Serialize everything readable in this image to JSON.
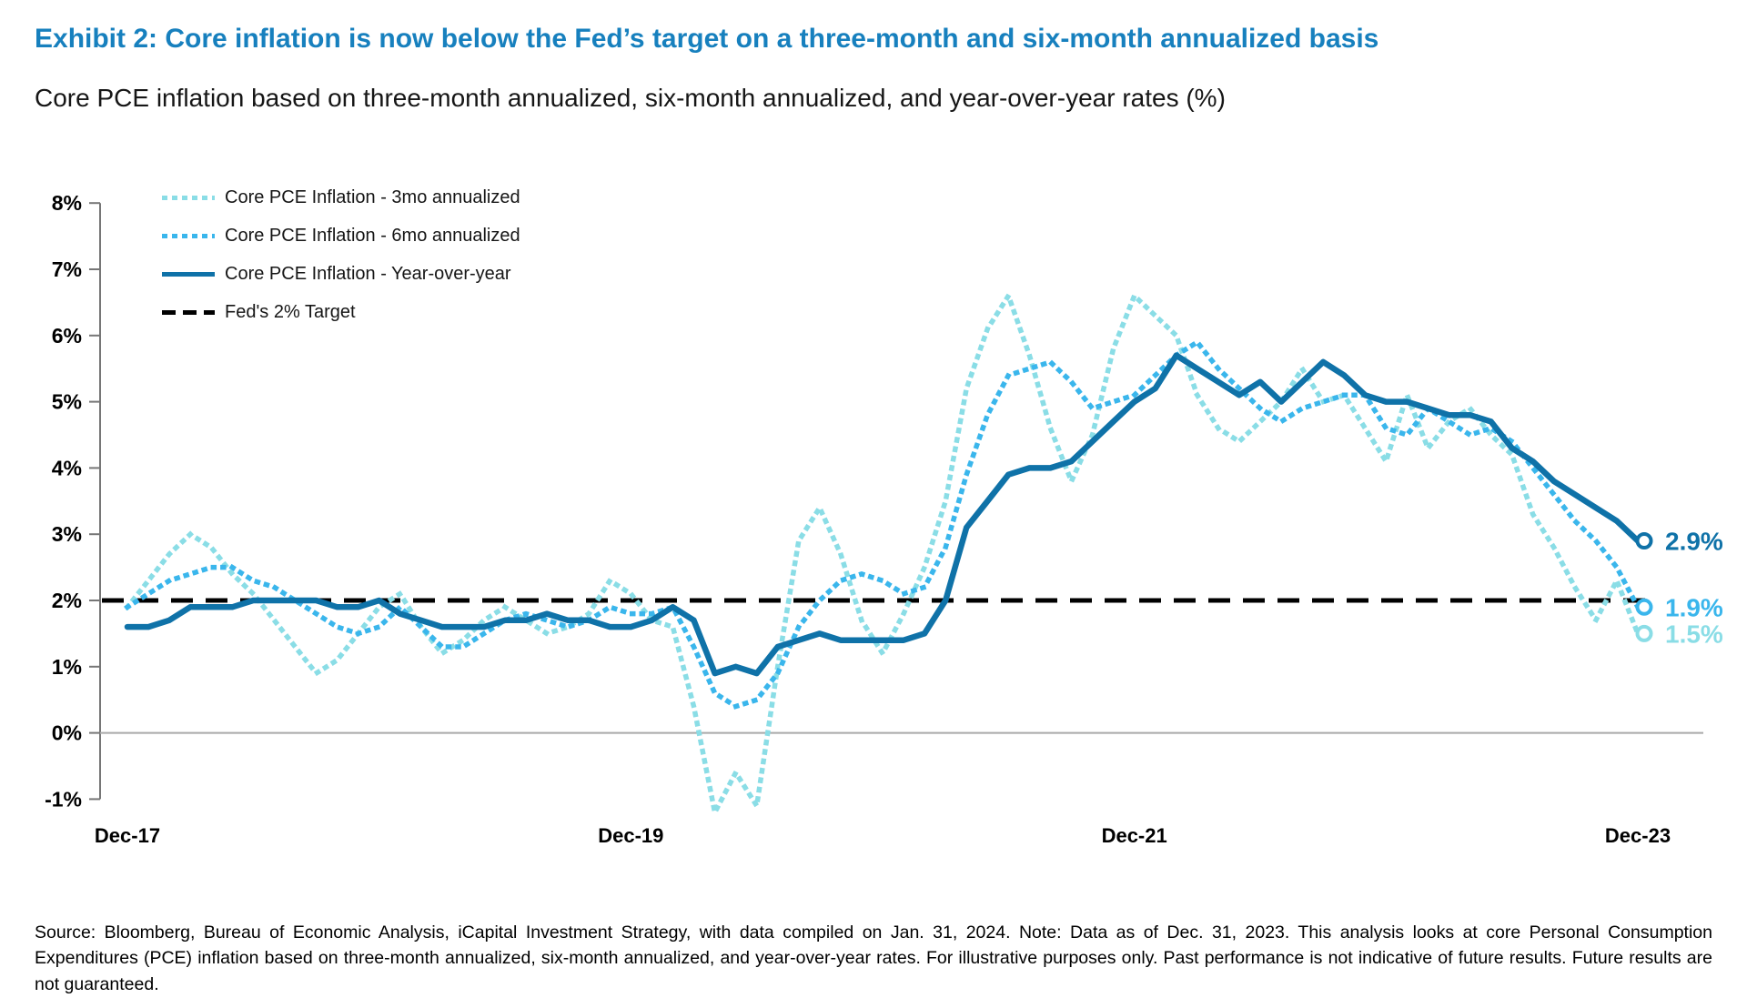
{
  "header": {
    "title": "Exhibit 2: Core inflation is now below the Fed’s target on a three-month and six-month annualized basis",
    "subtitle": "Core PCE inflation based on three-month annualized, six-month annualized, and year-over-year rates (%)"
  },
  "colors": {
    "title_blue": "#1780BE",
    "yoy_line": "#0F72A8",
    "mo6_line": "#3AB6EC",
    "mo3_line": "#8ADDE6",
    "target_line": "#000000",
    "zero_line": "#A9A9A9",
    "axis": "#767676",
    "tick_text": "#000000"
  },
  "chart_data": {
    "type": "line",
    "title": "Core PCE inflation based on three-month annualized, six-month annualized, and year-over-year rates (%)",
    "xlabel": "",
    "ylabel": "",
    "x_unit": "months from Dec-2017 to Dec-2023",
    "ylim": [
      -1,
      8
    ],
    "grid": "zero-line-only",
    "legend_position": "top-left-inside",
    "y_ticks": [
      "8%",
      "7%",
      "6%",
      "5%",
      "4%",
      "3%",
      "2%",
      "1%",
      "0%",
      "-1%"
    ],
    "x_ticks": [
      {
        "label": "Dec-17",
        "month": 0
      },
      {
        "label": "Dec-19",
        "month": 24
      },
      {
        "label": "Dec-21",
        "month": 48
      },
      {
        "label": "Dec-23",
        "month": 72
      }
    ],
    "target_line": {
      "label": "Fed's 2% Target",
      "value": 2
    },
    "series": [
      {
        "name": "Core PCE Inflation - 3mo annualized",
        "style": "dotted",
        "color_key": "mo3_line",
        "end_label": "1.5%",
        "values": [
          1.9,
          2.3,
          2.7,
          3.0,
          2.8,
          2.4,
          2.1,
          1.7,
          1.3,
          0.9,
          1.1,
          1.5,
          1.9,
          2.1,
          1.6,
          1.2,
          1.4,
          1.7,
          1.9,
          1.7,
          1.5,
          1.6,
          1.8,
          2.3,
          2.1,
          1.7,
          1.6,
          0.4,
          -1.2,
          -0.6,
          -1.1,
          1.0,
          2.9,
          3.4,
          2.7,
          1.7,
          1.2,
          1.8,
          2.5,
          3.5,
          5.2,
          6.1,
          6.6,
          5.7,
          4.6,
          3.8,
          4.5,
          5.8,
          6.6,
          6.3,
          6.0,
          5.1,
          4.6,
          4.4,
          4.7,
          5.0,
          5.5,
          5.0,
          5.1,
          4.6,
          4.1,
          5.1,
          4.3,
          4.7,
          4.9,
          4.5,
          4.2,
          3.3,
          2.8,
          2.2,
          1.7,
          2.3,
          1.5
        ]
      },
      {
        "name": "Core PCE Inflation - 6mo annualized",
        "style": "dotted",
        "color_key": "mo6_line",
        "end_label": "1.9%",
        "values": [
          1.9,
          2.1,
          2.3,
          2.4,
          2.5,
          2.5,
          2.3,
          2.2,
          2.0,
          1.8,
          1.6,
          1.5,
          1.6,
          1.9,
          1.6,
          1.3,
          1.3,
          1.5,
          1.7,
          1.8,
          1.7,
          1.6,
          1.7,
          1.9,
          1.8,
          1.8,
          1.9,
          1.3,
          0.6,
          0.4,
          0.5,
          0.9,
          1.6,
          2.0,
          2.3,
          2.4,
          2.3,
          2.1,
          2.2,
          2.8,
          3.9,
          4.8,
          5.4,
          5.5,
          5.6,
          5.3,
          4.9,
          5.0,
          5.1,
          5.4,
          5.7,
          5.9,
          5.5,
          5.2,
          4.9,
          4.7,
          4.9,
          5.0,
          5.1,
          5.1,
          4.6,
          4.5,
          4.9,
          4.7,
          4.5,
          4.6,
          4.4,
          4.0,
          3.6,
          3.2,
          2.9,
          2.5,
          1.9
        ]
      },
      {
        "name": "Core PCE Inflation - Year-over-year",
        "style": "solid",
        "color_key": "yoy_line",
        "end_label": "2.9%",
        "values": [
          1.6,
          1.6,
          1.7,
          1.9,
          1.9,
          1.9,
          2.0,
          2.0,
          2.0,
          2.0,
          1.9,
          1.9,
          2.0,
          1.8,
          1.7,
          1.6,
          1.6,
          1.6,
          1.7,
          1.7,
          1.8,
          1.7,
          1.7,
          1.6,
          1.6,
          1.7,
          1.9,
          1.7,
          0.9,
          1.0,
          0.9,
          1.3,
          1.4,
          1.5,
          1.4,
          1.4,
          1.4,
          1.4,
          1.5,
          2.0,
          3.1,
          3.5,
          3.9,
          4.0,
          4.0,
          4.1,
          4.4,
          4.7,
          5.0,
          5.2,
          5.7,
          5.5,
          5.3,
          5.1,
          5.3,
          5.0,
          5.3,
          5.6,
          5.4,
          5.1,
          5.0,
          5.0,
          4.9,
          4.8,
          4.8,
          4.7,
          4.3,
          4.1,
          3.8,
          3.6,
          3.4,
          3.2,
          2.9
        ]
      }
    ]
  },
  "footer": {
    "note": "Source: Bloomberg, Bureau of Economic Analysis, iCapital Investment Strategy, with data compiled on Jan. 31, 2024. Note: Data as of Dec. 31, 2023. This analysis looks at core Personal Consumption Expenditures (PCE) inflation based on three-month annualized, six-month annualized, and year-over-year rates. For illustrative purposes only. Past performance is not indicative of future results. Future results are not guaranteed."
  }
}
